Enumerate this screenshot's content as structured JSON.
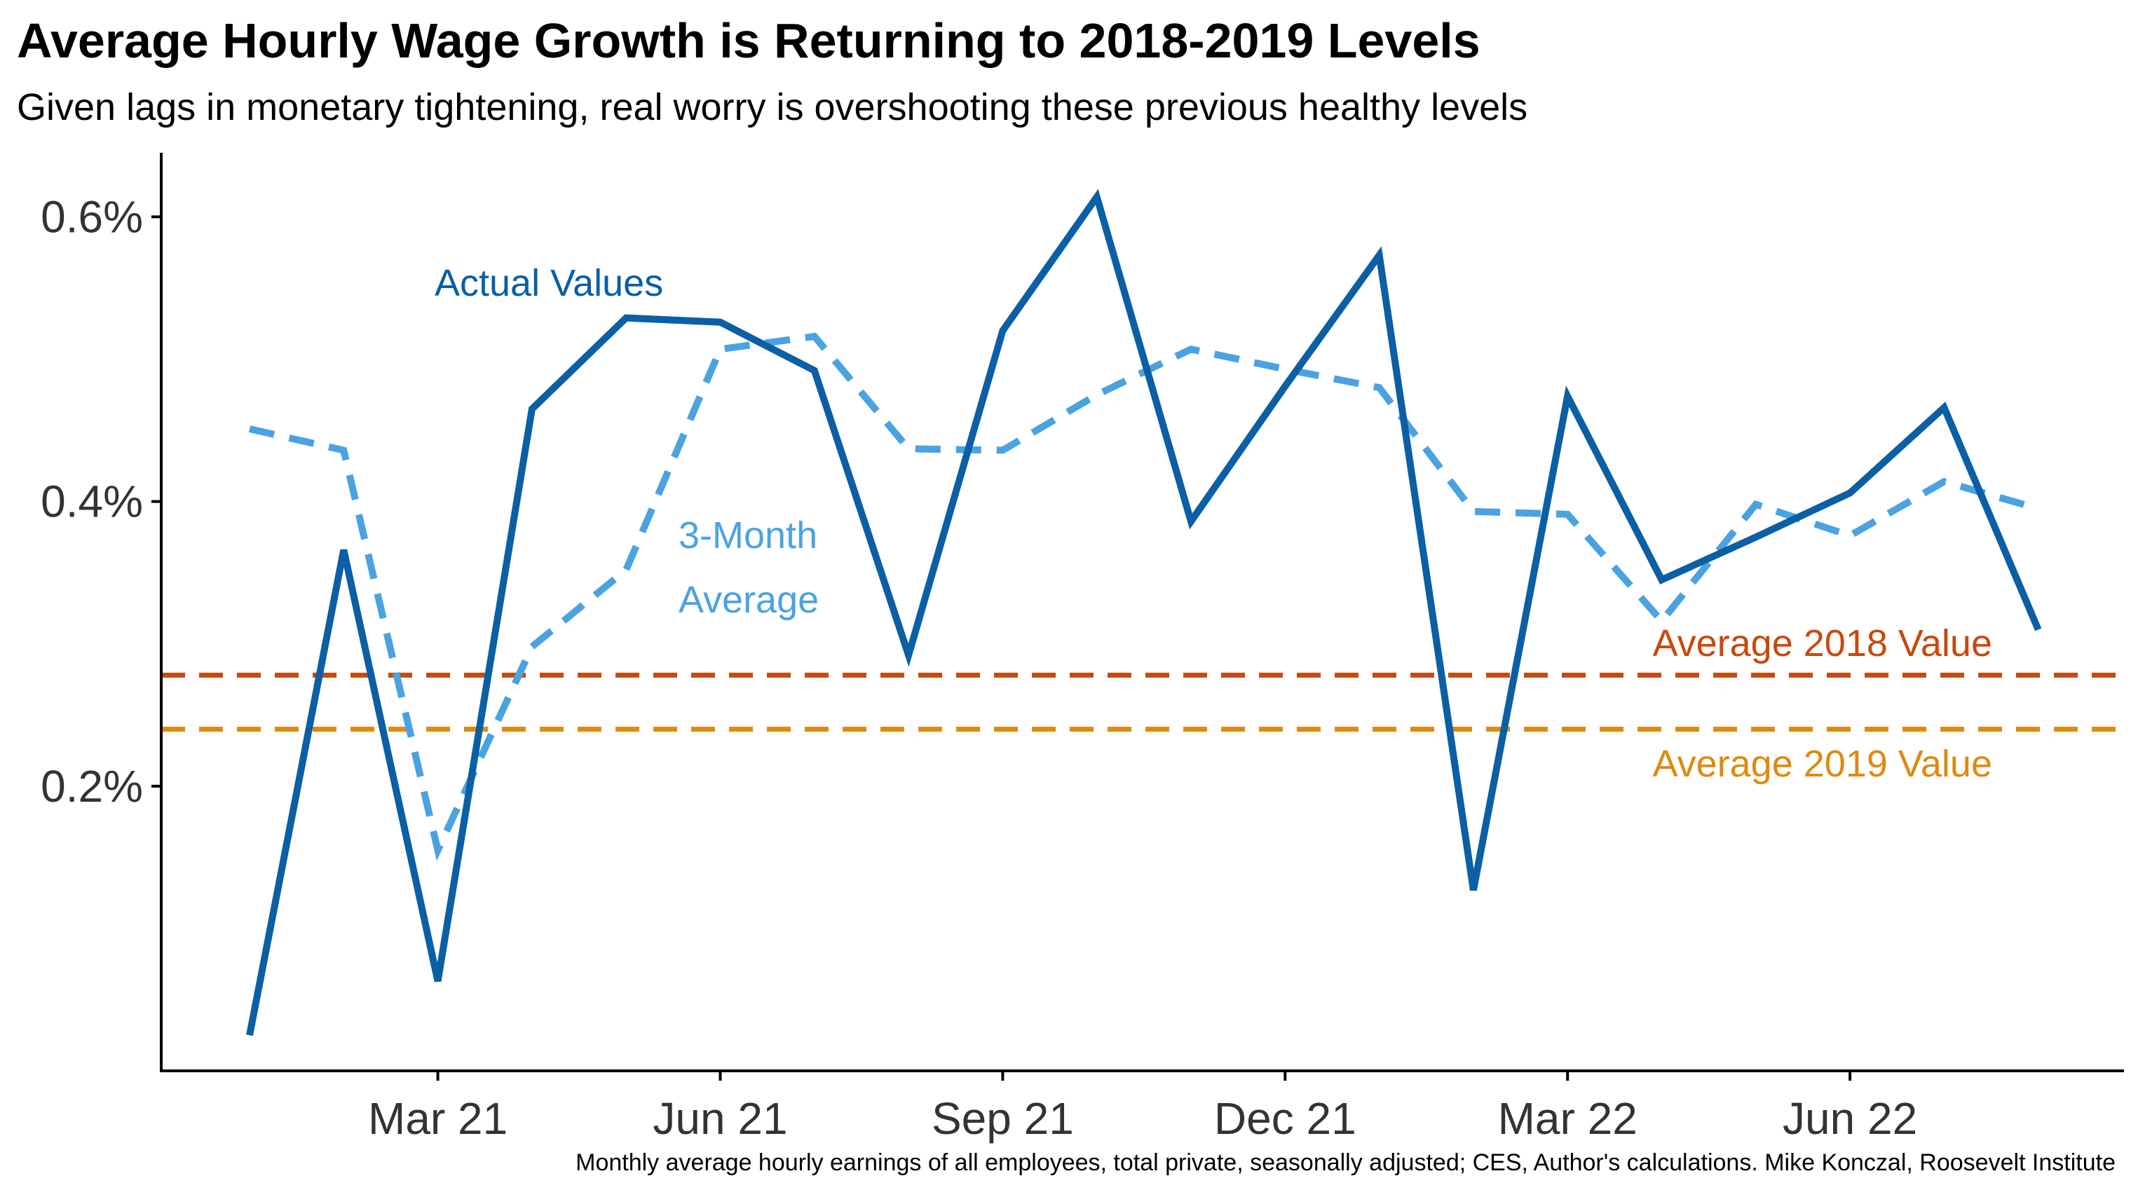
{
  "chart_data": {
    "type": "line",
    "title": "Average Hourly Wage Growth is Returning to 2018-2019 Levels",
    "subtitle": "Given lags in monetary tightening, real worry is overshooting these previous healthy levels",
    "caption": "Monthly average hourly earnings of all employees, total private, seasonally adjusted; CES, Author's calculations. Mike Konczal, Roosevelt Institute",
    "x": [
      "2021-01",
      "2021-02",
      "2021-03",
      "2021-04",
      "2021-05",
      "2021-06",
      "2021-07",
      "2021-08",
      "2021-09",
      "2021-10",
      "2021-11",
      "2021-12",
      "2022-01",
      "2022-02",
      "2022-03",
      "2022-04",
      "2022-05",
      "2022-06",
      "2022-07",
      "2022-08"
    ],
    "x_ticks": [
      {
        "date": "2021-03",
        "label": "Mar 21"
      },
      {
        "date": "2021-06",
        "label": "Jun 21"
      },
      {
        "date": "2021-09",
        "label": "Sep 21"
      },
      {
        "date": "2021-12",
        "label": "Dec 21"
      },
      {
        "date": "2022-03",
        "label": "Mar 22"
      },
      {
        "date": "2022-06",
        "label": "Jun 22"
      }
    ],
    "y_ticks": [
      {
        "value": 0.2,
        "label": "0.2%"
      },
      {
        "value": 0.4,
        "label": "0.4%"
      },
      {
        "value": 0.6,
        "label": "0.6%"
      }
    ],
    "ylim": [
      0.0,
      0.645
    ],
    "grid": false,
    "series": [
      {
        "name": "Actual Values",
        "style": "solid",
        "color": "#0a5fa5",
        "values": [
          0.025,
          0.366,
          0.063,
          0.465,
          0.529,
          0.526,
          0.492,
          0.292,
          0.52,
          0.614,
          0.386,
          0.481,
          0.573,
          0.127,
          0.474,
          0.345,
          0.375,
          0.406,
          0.466,
          0.31
        ]
      },
      {
        "name": "3-Month Average",
        "style": "dashed",
        "color": "#4aa3e0",
        "values": [
          0.451,
          0.436,
          0.155,
          0.298,
          0.352,
          0.507,
          0.516,
          0.437,
          0.436,
          0.475,
          0.507,
          0.493,
          0.48,
          0.393,
          0.391,
          0.316,
          0.398,
          0.376,
          0.414,
          0.395
        ]
      }
    ],
    "reference_lines": [
      {
        "name": "Average 2018 Value",
        "value": 0.278,
        "color": "#c8490d",
        "style": "dashed"
      },
      {
        "name": "Average 2019 Value",
        "value": 0.24,
        "color": "#de8a10",
        "style": "dashed"
      }
    ],
    "annotations": [
      {
        "text": "Actual Values",
        "color": "#0a5fa5"
      },
      {
        "text_lines": [
          "3-Month",
          "Average"
        ],
        "color": "#4aa3e0"
      },
      {
        "text": "Average 2018 Value",
        "color": "#c8490d"
      },
      {
        "text": "Average 2019 Value",
        "color": "#de8a10"
      }
    ]
  }
}
